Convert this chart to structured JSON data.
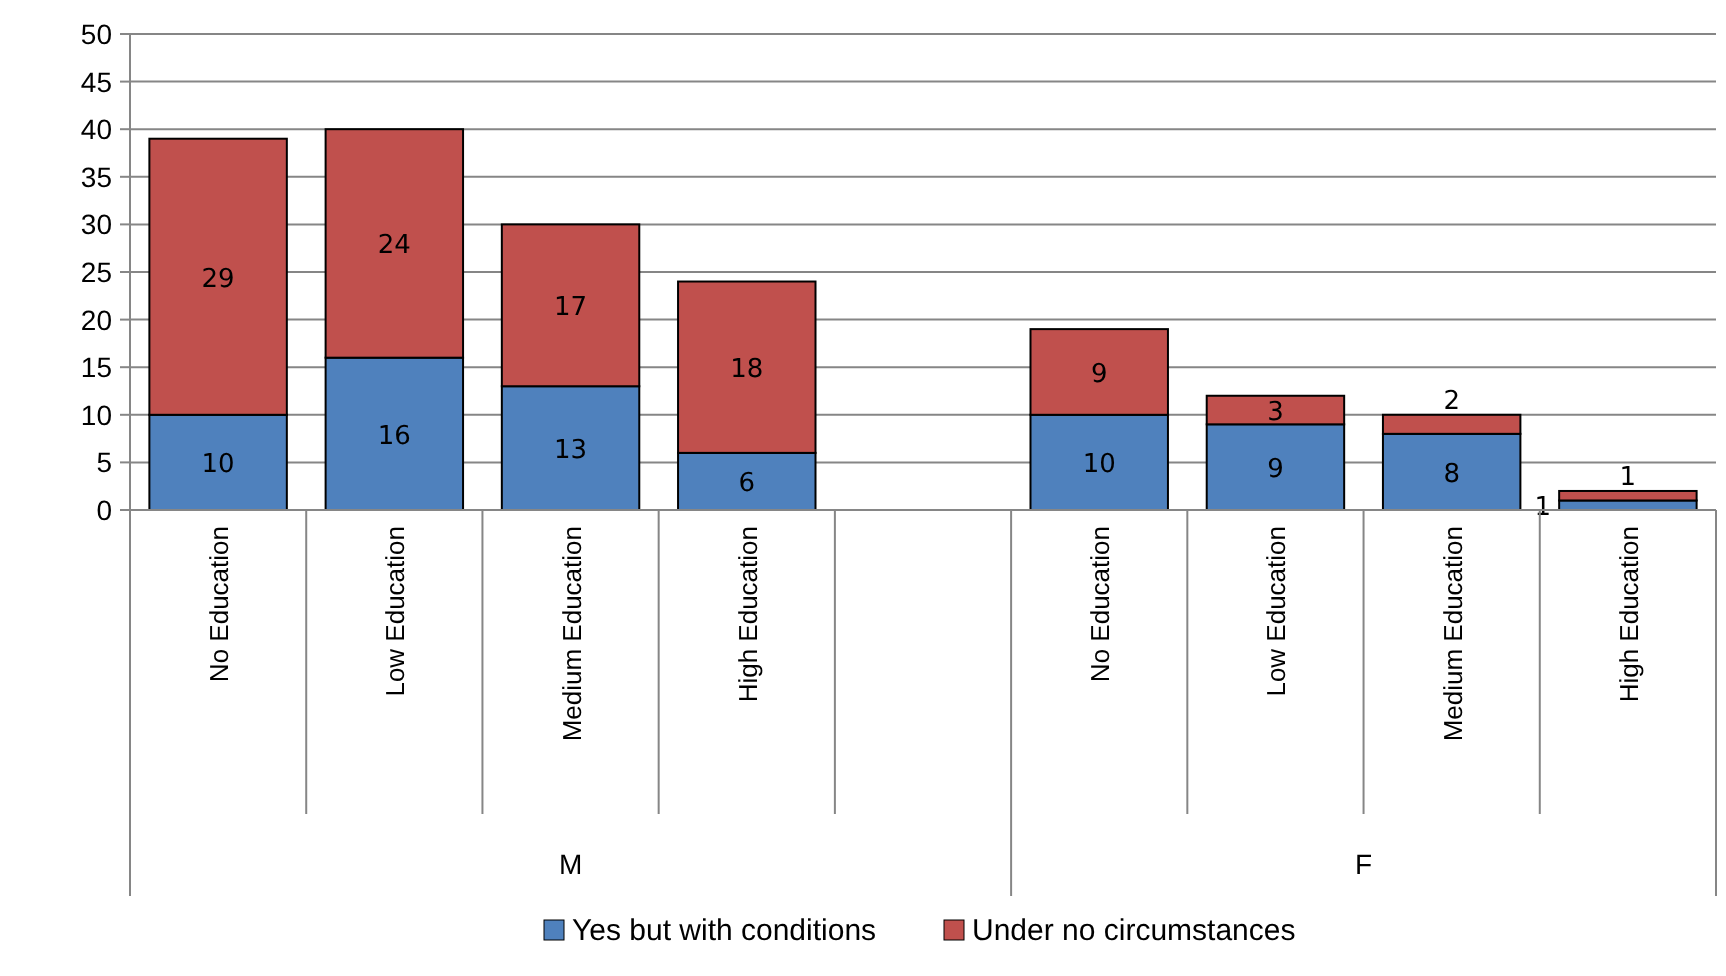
{
  "chart_data": {
    "type": "bar",
    "stacked": true,
    "categories": [
      "No Education",
      "Low Education",
      "Medium Education",
      "High Education",
      null,
      "No Education",
      "Low Education",
      "Medium Education",
      "High Education"
    ],
    "series": [
      {
        "name": "Yes but with conditions",
        "color": "#4f81bd",
        "values": [
          10,
          16,
          13,
          6,
          null,
          10,
          9,
          8,
          1
        ]
      },
      {
        "name": "Under no circumstances",
        "color": "#c0504d",
        "values": [
          29,
          24,
          17,
          18,
          null,
          9,
          3,
          2,
          1
        ]
      }
    ],
    "ylim": [
      0,
      50
    ],
    "yticks": [
      0,
      5,
      10,
      15,
      20,
      25,
      30,
      35,
      40,
      45,
      50
    ],
    "grid": "y",
    "data_labels": true,
    "legend": "bottom",
    "annotations": [
      "M",
      "F"
    ]
  }
}
